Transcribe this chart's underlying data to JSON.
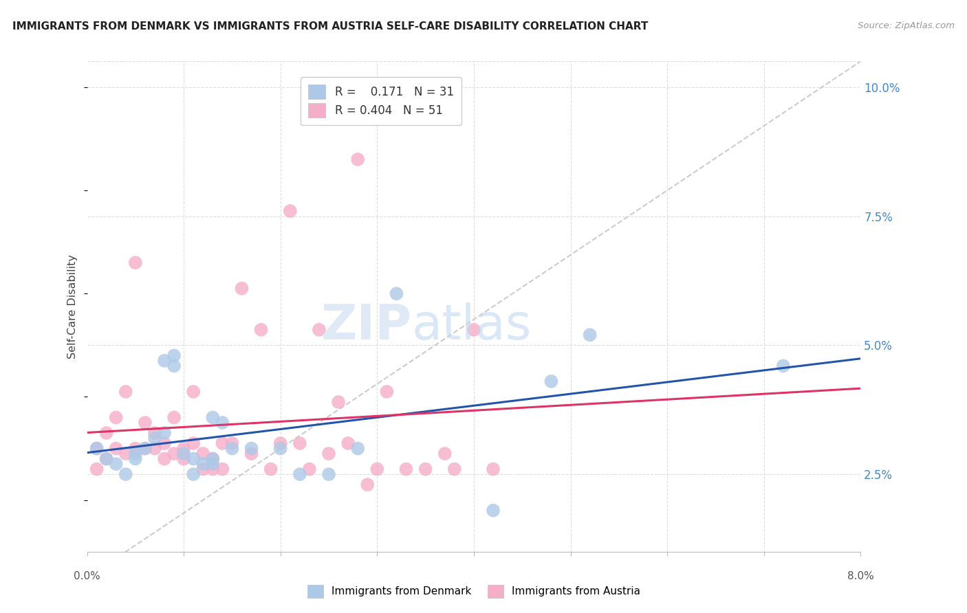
{
  "title": "IMMIGRANTS FROM DENMARK VS IMMIGRANTS FROM AUSTRIA SELF-CARE DISABILITY CORRELATION CHART",
  "source": "Source: ZipAtlas.com",
  "ylabel": "Self-Care Disability",
  "xlim": [
    0.0,
    0.08
  ],
  "ylim": [
    0.01,
    0.105
  ],
  "right_yticks": [
    0.025,
    0.05,
    0.075,
    0.1
  ],
  "right_yticklabels": [
    "2.5%",
    "5.0%",
    "7.5%",
    "10.0%"
  ],
  "color_denmark": "#adc9e8",
  "color_austria": "#f5aec8",
  "line_denmark": "#2255aa",
  "line_austria": "#dd3366",
  "line_dashed_color": "#cccccc",
  "watermark": "ZIPatlas",
  "background_color": "#ffffff",
  "grid_color": "#dddddd",
  "denmark_points": [
    [
      0.001,
      0.03
    ],
    [
      0.002,
      0.028
    ],
    [
      0.003,
      0.027
    ],
    [
      0.004,
      0.025
    ],
    [
      0.005,
      0.028
    ],
    [
      0.005,
      0.029
    ],
    [
      0.006,
      0.03
    ],
    [
      0.007,
      0.032
    ],
    [
      0.008,
      0.033
    ],
    [
      0.008,
      0.047
    ],
    [
      0.009,
      0.046
    ],
    [
      0.009,
      0.048
    ],
    [
      0.01,
      0.029
    ],
    [
      0.011,
      0.028
    ],
    [
      0.011,
      0.025
    ],
    [
      0.012,
      0.027
    ],
    [
      0.013,
      0.028
    ],
    [
      0.013,
      0.027
    ],
    [
      0.013,
      0.036
    ],
    [
      0.014,
      0.035
    ],
    [
      0.015,
      0.03
    ],
    [
      0.017,
      0.03
    ],
    [
      0.02,
      0.03
    ],
    [
      0.022,
      0.025
    ],
    [
      0.025,
      0.025
    ],
    [
      0.028,
      0.03
    ],
    [
      0.032,
      0.06
    ],
    [
      0.042,
      0.018
    ],
    [
      0.048,
      0.043
    ],
    [
      0.052,
      0.052
    ],
    [
      0.072,
      0.046
    ]
  ],
  "austria_points": [
    [
      0.001,
      0.026
    ],
    [
      0.001,
      0.03
    ],
    [
      0.002,
      0.028
    ],
    [
      0.002,
      0.033
    ],
    [
      0.003,
      0.03
    ],
    [
      0.003,
      0.036
    ],
    [
      0.004,
      0.029
    ],
    [
      0.004,
      0.041
    ],
    [
      0.005,
      0.03
    ],
    [
      0.005,
      0.066
    ],
    [
      0.006,
      0.03
    ],
    [
      0.006,
      0.035
    ],
    [
      0.007,
      0.03
    ],
    [
      0.007,
      0.033
    ],
    [
      0.008,
      0.028
    ],
    [
      0.008,
      0.031
    ],
    [
      0.009,
      0.029
    ],
    [
      0.009,
      0.036
    ],
    [
      0.01,
      0.03
    ],
    [
      0.01,
      0.028
    ],
    [
      0.011,
      0.031
    ],
    [
      0.011,
      0.041
    ],
    [
      0.012,
      0.026
    ],
    [
      0.012,
      0.029
    ],
    [
      0.013,
      0.026
    ],
    [
      0.013,
      0.028
    ],
    [
      0.014,
      0.031
    ],
    [
      0.014,
      0.026
    ],
    [
      0.015,
      0.031
    ],
    [
      0.016,
      0.061
    ],
    [
      0.017,
      0.029
    ],
    [
      0.018,
      0.053
    ],
    [
      0.019,
      0.026
    ],
    [
      0.02,
      0.031
    ],
    [
      0.021,
      0.076
    ],
    [
      0.022,
      0.031
    ],
    [
      0.023,
      0.026
    ],
    [
      0.024,
      0.053
    ],
    [
      0.025,
      0.029
    ],
    [
      0.026,
      0.039
    ],
    [
      0.027,
      0.031
    ],
    [
      0.028,
      0.086
    ],
    [
      0.029,
      0.023
    ],
    [
      0.03,
      0.026
    ],
    [
      0.031,
      0.041
    ],
    [
      0.033,
      0.026
    ],
    [
      0.035,
      0.026
    ],
    [
      0.037,
      0.029
    ],
    [
      0.038,
      0.026
    ],
    [
      0.04,
      0.053
    ],
    [
      0.042,
      0.026
    ]
  ]
}
